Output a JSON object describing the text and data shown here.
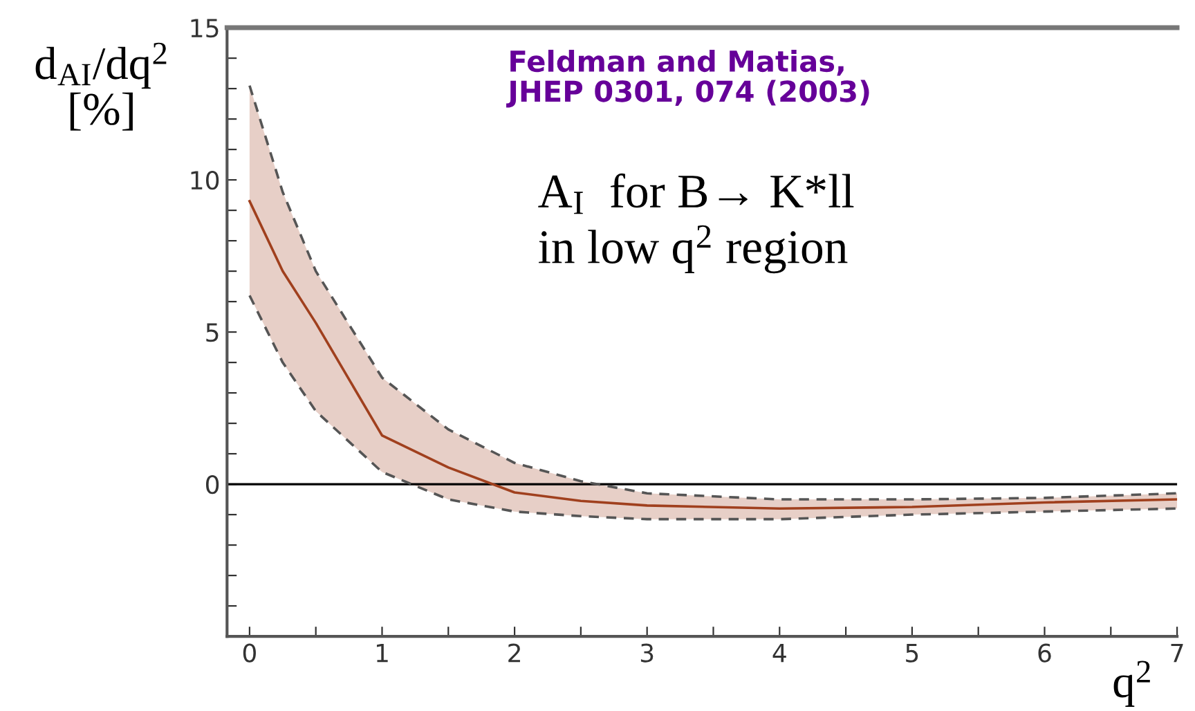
{
  "chart_data": {
    "type": "line",
    "ylabel": "d$_{AI}$/dq$^{2}$\n[%]",
    "xlabel": "q$^{2}$",
    "annotations": [
      "Feldman and Matias,\nJHEP 0301, 074 (2003)",
      "A$_{I}$  for B→ K*ll\nin low q$^{2}$ region"
    ],
    "x": [
      0,
      0.25,
      0.5,
      1,
      1.5,
      2,
      2.5,
      3,
      4,
      5,
      6,
      7
    ],
    "series": [
      {
        "color": "#555555",
        "line_style": "dashed",
        "values": [
          13.1,
          9.6,
          7.0,
          3.5,
          1.8,
          0.7,
          0.1,
          -0.3,
          -0.5,
          -0.5,
          -0.45,
          -0.3
        ]
      },
      {
        "color": "#555555",
        "line_style": "dashed",
        "values": [
          6.2,
          4.0,
          2.4,
          0.4,
          -0.5,
          -0.9,
          -1.05,
          -1.15,
          -1.15,
          -1.0,
          -0.9,
          -0.8
        ]
      },
      {
        "color": "#a0401e",
        "values": [
          9.3,
          7.0,
          5.3,
          1.6,
          0.55,
          -0.27,
          -0.55,
          -0.7,
          -0.8,
          -0.75,
          -0.6,
          -0.5
        ],
        "lower": [
          6.2,
          4.0,
          2.4,
          0.4,
          -0.5,
          -0.9,
          -1.05,
          -1.15,
          -1.15,
          -1.0,
          -0.9,
          -0.8
        ],
        "upper": [
          13.1,
          9.6,
          7.0,
          3.5,
          1.8,
          0.7,
          0.1,
          -0.3,
          -0.5,
          -0.5,
          -0.45,
          -0.3
        ]
      }
    ],
    "xlim": [
      -0.17,
      7
    ],
    "ylim": [
      -5,
      15
    ],
    "xticks": [
      0,
      {
        "value": 0.5,
        "label": null
      },
      1,
      {
        "value": 1.5,
        "label": null
      },
      2,
      {
        "value": 2.5,
        "label": null
      },
      3,
      {
        "value": 3.5,
        "label": null
      },
      4,
      {
        "value": 4.5,
        "label": null
      },
      5,
      {
        "value": 5.5,
        "label": null
      },
      6,
      {
        "value": 6.5,
        "label": null
      },
      7
    ],
    "yticks": [
      {
        "value": -4,
        "label": null
      },
      {
        "value": -3,
        "label": null
      },
      {
        "value": -2,
        "label": null
      },
      {
        "value": -1,
        "label": null
      },
      0,
      {
        "value": 1,
        "label": null
      },
      {
        "value": 2,
        "label": null
      },
      {
        "value": 3,
        "label": null
      },
      {
        "value": 4,
        "label": null
      },
      5,
      {
        "value": 6,
        "label": null
      },
      {
        "value": 7,
        "label": null
      },
      {
        "value": 8,
        "label": null
      },
      {
        "value": 9,
        "label": null
      },
      10,
      {
        "value": 11,
        "label": null
      },
      {
        "value": 12,
        "label": null
      },
      {
        "value": 13,
        "label": null
      },
      {
        "value": 14,
        "label": null
      },
      15
    ],
    "ref_lines": [
      {
        "axis": "y",
        "value": 0,
        "color": "#000000"
      }
    ],
    "grid": false,
    "legend": false
  }
}
